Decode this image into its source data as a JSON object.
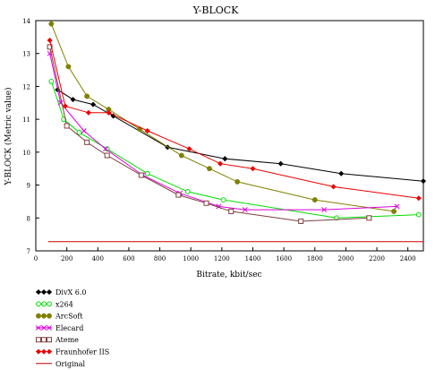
{
  "chart_data": {
    "type": "line",
    "title": "Y-BLOCK",
    "xlabel": "Bitrate, kbit/sec",
    "ylabel": "Y-BLOCK (Metric value)",
    "xlim": [
      0,
      2500
    ],
    "ylim": [
      7,
      14
    ],
    "xticks": [
      "0",
      "200",
      "400",
      "600",
      "800",
      "1000",
      "1200",
      "1400",
      "1600",
      "1800",
      "2000",
      "2200",
      "2400"
    ],
    "yticks": [
      "7",
      "8",
      "9",
      "10",
      "11",
      "12",
      "13",
      "14"
    ],
    "grid": false,
    "legend_position": "bottom-left",
    "series": [
      {
        "name": "DivX 6.0",
        "color": "#000000",
        "marker": "diamond",
        "x": [
          140,
          240,
          370,
          500,
          850,
          1220,
          1580,
          1970,
          2500
        ],
        "y": [
          11.9,
          11.6,
          11.45,
          11.1,
          10.15,
          9.8,
          9.65,
          9.35,
          9.12
        ]
      },
      {
        "name": "x264",
        "color": "#00dd00",
        "marker": "circle-open",
        "x": [
          100,
          180,
          280,
          460,
          720,
          980,
          1210,
          1940,
          2470
        ],
        "y": [
          12.15,
          11.0,
          10.6,
          10.1,
          9.35,
          8.8,
          8.55,
          8.0,
          8.1
        ]
      },
      {
        "name": "ArcSoft",
        "color": "#808000",
        "marker": "circle-filled",
        "x": [
          100,
          210,
          330,
          470,
          670,
          940,
          1120,
          1300,
          1800,
          2310
        ],
        "y": [
          13.9,
          12.6,
          11.7,
          11.3,
          10.7,
          9.9,
          9.5,
          9.1,
          8.55,
          8.2
        ]
      },
      {
        "name": "Elecard",
        "color": "#dd00dd",
        "marker": "x",
        "x": [
          90,
          160,
          310,
          450,
          690,
          930,
          1180,
          1350,
          1860,
          2330
        ],
        "y": [
          13.0,
          11.5,
          10.65,
          10.1,
          9.3,
          8.75,
          8.35,
          8.25,
          8.25,
          8.35
        ]
      },
      {
        "name": "Ateme",
        "color": "#804040",
        "marker": "square-open",
        "x": [
          90,
          200,
          330,
          460,
          680,
          920,
          1100,
          1260,
          1710,
          2150
        ],
        "y": [
          13.2,
          10.8,
          10.3,
          9.9,
          9.3,
          8.7,
          8.45,
          8.2,
          7.9,
          8.0
        ]
      },
      {
        "name": "Fraunhofer IIS",
        "color": "#ee0000",
        "marker": "diamond",
        "x": [
          90,
          190,
          340,
          470,
          720,
          990,
          1190,
          1400,
          1920,
          2470
        ],
        "y": [
          13.4,
          11.4,
          11.2,
          11.2,
          10.65,
          10.1,
          9.65,
          9.5,
          8.95,
          8.6
        ]
      },
      {
        "name": "Original",
        "color": "#cc0000",
        "marker": "none",
        "x": [
          80,
          2500
        ],
        "y": [
          7.28,
          7.28
        ]
      }
    ]
  }
}
